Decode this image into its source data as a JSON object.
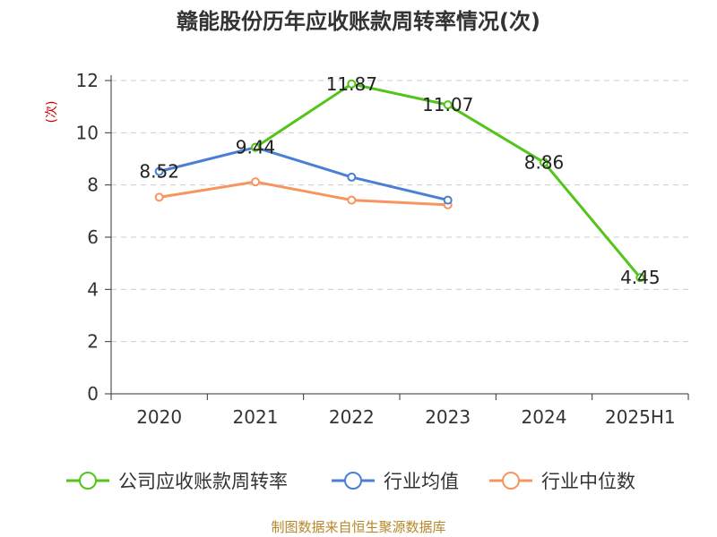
{
  "chart_data": {
    "type": "line",
    "title": "赣能股份历年应收账款周转率情况(次)",
    "ylabel": "(次)",
    "xlabel": "",
    "categories": [
      "2020",
      "2021",
      "2022",
      "2023",
      "2024",
      "2025H1"
    ],
    "ylim": [
      0,
      12
    ],
    "yticks": [
      0,
      2,
      4,
      6,
      8,
      10,
      12
    ],
    "grid": true,
    "legend_position": "bottom",
    "series": [
      {
        "name": "公司应收账款周转率",
        "color": "#52c41a",
        "values": [
          null,
          9.44,
          11.87,
          11.07,
          8.86,
          4.45
        ],
        "labels": [
          null,
          null,
          "11.87",
          "11.07",
          "8.86",
          "4.45"
        ]
      },
      {
        "name": "行业均值",
        "color": "#4a7fd4",
        "values": [
          8.52,
          9.44,
          8.3,
          7.42,
          null,
          null
        ],
        "labels": [
          "8.52",
          "9.44",
          null,
          null,
          null,
          null
        ]
      },
      {
        "name": "行业中位数",
        "color": "#f79460",
        "values": [
          7.53,
          8.12,
          7.42,
          7.24,
          null,
          null
        ],
        "labels": [
          null,
          null,
          null,
          null,
          null,
          null
        ]
      }
    ]
  },
  "source": "制图数据来自恒生聚源数据库"
}
